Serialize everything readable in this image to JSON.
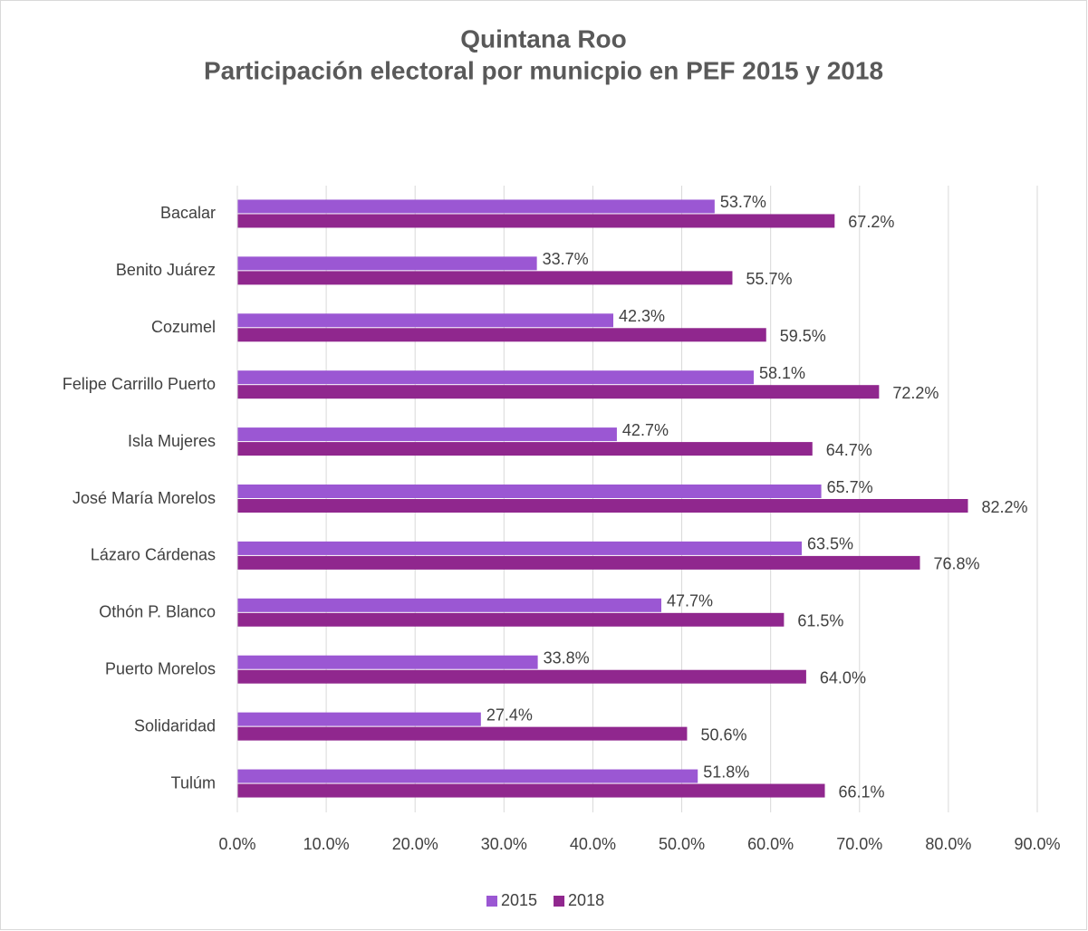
{
  "chart_data": {
    "type": "hbar",
    "title": "Quintana Roo",
    "subtitle": "Participación electoral por municpio en PEF 2015 y 2018",
    "categories": [
      "Bacalar",
      "Benito Juárez",
      "Cozumel",
      "Felipe Carrillo Puerto",
      "Isla Mujeres",
      "José María Morelos",
      "Lázaro Cárdenas",
      "Othón P. Blanco",
      "Puerto Morelos",
      "Solidaridad",
      "Tulúm"
    ],
    "series": [
      {
        "name": "2015",
        "color": "#9b57d3",
        "values": [
          53.7,
          33.7,
          42.3,
          58.1,
          42.7,
          65.7,
          63.5,
          47.7,
          33.8,
          27.4,
          51.8
        ],
        "value_labels": [
          "53.7%",
          "33.7%",
          "42.3%",
          "58.1%",
          "42.7%",
          "65.7%",
          "63.5%",
          "47.7%",
          "33.8%",
          "27.4%",
          "51.8%"
        ]
      },
      {
        "name": "2018",
        "color": "#90278e",
        "values": [
          67.2,
          55.7,
          59.5,
          72.2,
          64.7,
          82.2,
          76.8,
          61.5,
          64.0,
          50.6,
          66.1
        ],
        "value_labels": [
          "67.2%",
          "55.7%",
          "59.5%",
          "72.2%",
          "64.7%",
          "82.2%",
          "76.8%",
          "61.5%",
          "64.0%",
          "50.6%",
          "66.1%"
        ]
      }
    ],
    "xlim": [
      0,
      90
    ],
    "xticks": [
      {
        "value": 0,
        "label": "0.0%"
      },
      {
        "value": 10,
        "label": "10.0%"
      },
      {
        "value": 20,
        "label": "20.0%"
      },
      {
        "value": 30,
        "label": "30.0%"
      },
      {
        "value": 40,
        "label": "40.0%"
      },
      {
        "value": 50,
        "label": "50.0%"
      },
      {
        "value": 60,
        "label": "60.0%"
      },
      {
        "value": 70,
        "label": "70.0%"
      },
      {
        "value": 80,
        "label": "80.0%"
      },
      {
        "value": 90,
        "label": "90.0%"
      }
    ],
    "grid": true,
    "legend": "bottom"
  }
}
